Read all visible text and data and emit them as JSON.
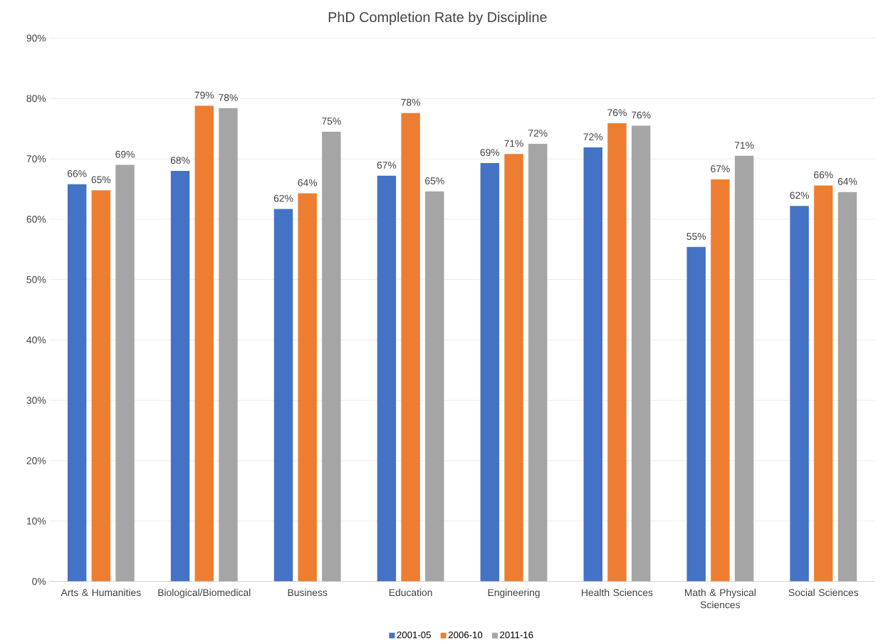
{
  "chart_data": {
    "type": "bar",
    "title": "PhD Completion Rate by Discipline",
    "categories": [
      "Arts & Humanities",
      "Biological/Biomedical",
      "Business",
      "Education",
      "Engineering",
      "Health Sciences",
      "Math & Physical Sciences",
      "Social Sciences"
    ],
    "series": [
      {
        "name": "2001-05",
        "color": "#4472c4",
        "values": [
          65.8,
          68.0,
          61.7,
          67.2,
          69.3,
          71.9,
          55.4,
          62.2
        ],
        "value_labels": [
          "66%",
          "68%",
          "62%",
          "67%",
          "69%",
          "72%",
          "55%",
          "62%"
        ]
      },
      {
        "name": "2006-10",
        "color": "#ed7d31",
        "values": [
          64.8,
          78.8,
          64.3,
          77.6,
          70.8,
          75.9,
          66.6,
          65.6
        ],
        "value_labels": [
          "65%",
          "79%",
          "64%",
          "78%",
          "71%",
          "76%",
          "67%",
          "66%"
        ]
      },
      {
        "name": "2011-16",
        "color": "#a5a5a5",
        "values": [
          69.0,
          78.4,
          74.5,
          64.6,
          72.5,
          75.5,
          70.5,
          64.5
        ],
        "value_labels": [
          "69%",
          "78%",
          "75%",
          "65%",
          "72%",
          "76%",
          "71%",
          "64%"
        ]
      }
    ],
    "ylim": [
      0,
      90
    ],
    "yticks": [
      {
        "value": 0,
        "label": "0%"
      },
      {
        "value": 10,
        "label": "10%"
      },
      {
        "value": 20,
        "label": "20%"
      },
      {
        "value": 30,
        "label": "30%"
      },
      {
        "value": 40,
        "label": "40%"
      },
      {
        "value": 50,
        "label": "50%"
      },
      {
        "value": 60,
        "label": "60%"
      },
      {
        "value": 70,
        "label": "70%"
      },
      {
        "value": 80,
        "label": "80%"
      },
      {
        "value": 90,
        "label": "90%"
      }
    ],
    "grid": "y",
    "legend": "bottom"
  }
}
